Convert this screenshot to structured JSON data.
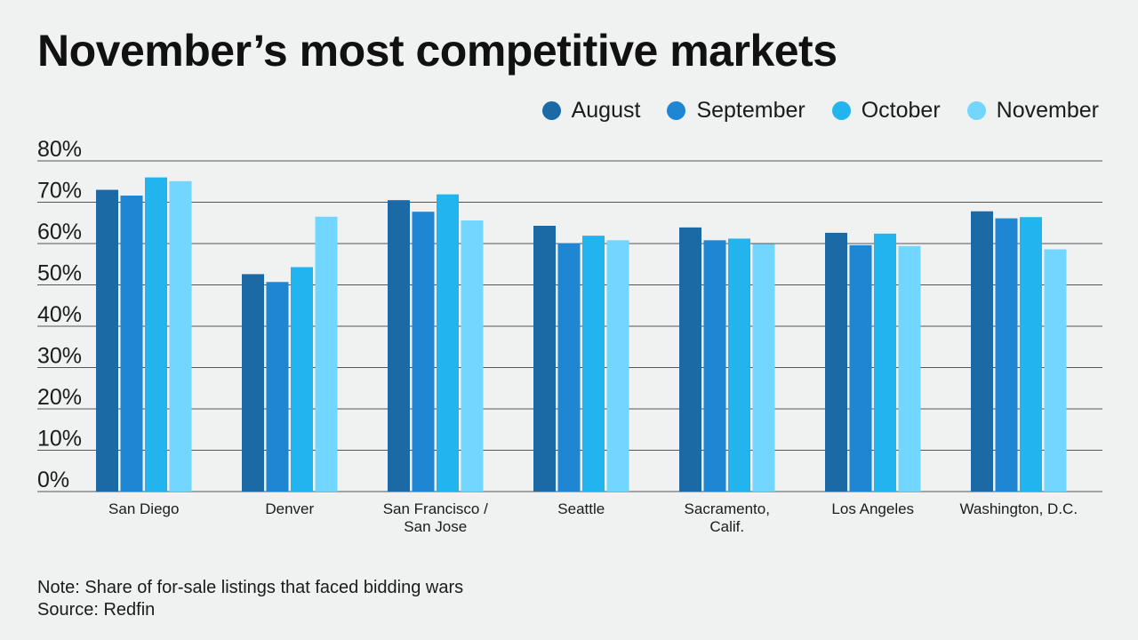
{
  "colors": {
    "august": "#1b6aa6",
    "september": "#1f86d3",
    "october": "#22b4ef",
    "november": "#72d6ff",
    "gridline": "#555555",
    "background": "#eff2f1"
  },
  "notes": {
    "note": "Note: Share of for-sale listings that faced bidding wars",
    "source": "Source: Redfin"
  },
  "chart_data": {
    "type": "bar",
    "title": "November’s most competitive markets",
    "xlabel": "",
    "ylabel": "",
    "ylim": [
      0,
      80
    ],
    "yticks": [
      0,
      10,
      20,
      30,
      40,
      50,
      60,
      70,
      80
    ],
    "ytick_labels": [
      "0%",
      "10%",
      "20%",
      "30%",
      "40%",
      "50%",
      "60%",
      "70%",
      "80%"
    ],
    "grid": true,
    "legend_position": "top-right",
    "categories": [
      [
        "San Diego"
      ],
      [
        "Denver"
      ],
      [
        "San Francisco /",
        "San Jose"
      ],
      [
        "Seattle"
      ],
      [
        "Sacramento,",
        "Calif."
      ],
      [
        "Los Angeles"
      ],
      [
        "Washington, D.C."
      ]
    ],
    "series": [
      {
        "name": "August",
        "color_key": "august",
        "values": [
          73.0,
          52.6,
          70.5,
          64.3,
          63.9,
          62.6,
          67.8
        ]
      },
      {
        "name": "September",
        "color_key": "september",
        "values": [
          71.6,
          50.7,
          67.7,
          60.1,
          60.8,
          59.6,
          66.1
        ]
      },
      {
        "name": "October",
        "color_key": "october",
        "values": [
          76.0,
          54.3,
          71.9,
          61.9,
          61.2,
          62.4,
          66.4
        ]
      },
      {
        "name": "November",
        "color_key": "november",
        "values": [
          75.1,
          66.5,
          65.6,
          60.8,
          59.9,
          59.4,
          58.6
        ]
      }
    ]
  }
}
